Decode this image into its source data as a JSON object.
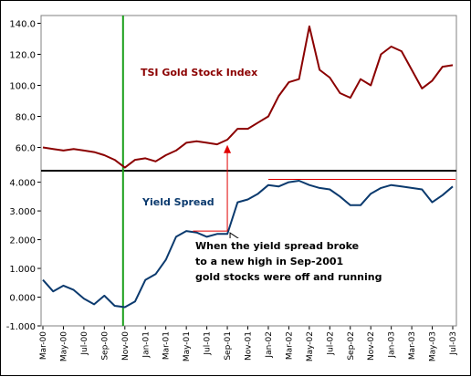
{
  "chart_data": {
    "type": "line",
    "x_tick_labels": [
      "Mar-00",
      "May-00",
      "Jul-00",
      "Sep-00",
      "Nov-00",
      "Jan-01",
      "Mar-01",
      "May-01",
      "Jul-01",
      "Sep-01",
      "Nov-01",
      "Jan-02",
      "Mar-02",
      "May-02",
      "Jul-02",
      "Sep-02",
      "Nov-02",
      "Jan-03",
      "Mar-03",
      "May-03",
      "Jul-03"
    ],
    "x_range": [
      "Mar-00",
      "Jul-03"
    ],
    "upper_panel": {
      "ylim": [
        45,
        145
      ],
      "y_ticks": [
        60,
        80,
        100,
        120,
        140
      ],
      "y_tick_labels": [
        "60.0",
        "80.0",
        "100.0",
        "120.0",
        "140.0"
      ],
      "series": [
        {
          "name": "TSI Gold Stock Index",
          "color": "#8b0000",
          "x": [
            "Mar-00",
            "Apr-00",
            "May-00",
            "Jun-00",
            "Jul-00",
            "Aug-00",
            "Sep-00",
            "Oct-00",
            "Nov-00",
            "Dec-00",
            "Jan-01",
            "Feb-01",
            "Mar-01",
            "Apr-01",
            "May-01",
            "Jun-01",
            "Jul-01",
            "Aug-01",
            "Sep-01",
            "Oct-01",
            "Nov-01",
            "Dec-01",
            "Jan-02",
            "Feb-02",
            "Mar-02",
            "Apr-02",
            "May-02",
            "Jun-02",
            "Jul-02",
            "Aug-02",
            "Sep-02",
            "Oct-02",
            "Nov-02",
            "Dec-02",
            "Jan-03",
            "Feb-03",
            "Mar-03",
            "Apr-03",
            "May-03",
            "Jun-03",
            "Jul-03"
          ],
          "y": [
            60,
            59,
            58,
            59,
            58,
            57,
            55,
            52,
            47,
            52,
            53,
            51,
            55,
            58,
            63,
            64,
            63,
            62,
            65,
            72,
            72,
            76,
            80,
            93,
            102,
            104,
            138,
            110,
            105,
            95,
            92,
            104,
            100,
            120,
            125,
            122,
            110,
            98,
            103,
            112,
            113
          ]
        }
      ]
    },
    "lower_panel": {
      "ylim": [
        -1,
        4.4
      ],
      "y_ticks": [
        -1,
        0,
        1,
        2,
        3,
        4
      ],
      "y_tick_labels": [
        "-1.000",
        "0.000",
        "1.000",
        "2.000",
        "3.000",
        "4.000"
      ],
      "series": [
        {
          "name": "Yield Spread",
          "color": "#0b3a6e",
          "x": [
            "Mar-00",
            "Apr-00",
            "May-00",
            "Jun-00",
            "Jul-00",
            "Aug-00",
            "Sep-00",
            "Oct-00",
            "Nov-00",
            "Dec-00",
            "Jan-01",
            "Feb-01",
            "Mar-01",
            "Apr-01",
            "May-01",
            "Jun-01",
            "Jul-01",
            "Aug-01",
            "Sep-01",
            "Oct-01",
            "Nov-01",
            "Dec-01",
            "Jan-02",
            "Feb-02",
            "Mar-02",
            "Apr-02",
            "May-02",
            "Jun-02",
            "Jul-02",
            "Aug-02",
            "Sep-02",
            "Oct-02",
            "Nov-02",
            "Dec-02",
            "Jan-03",
            "Feb-03",
            "Mar-03",
            "Apr-03",
            "May-03",
            "Jun-03",
            "Jul-03"
          ],
          "y": [
            0.6,
            0.2,
            0.4,
            0.25,
            -0.05,
            -0.25,
            0.05,
            -0.3,
            -0.35,
            -0.15,
            0.6,
            0.8,
            1.3,
            2.1,
            2.3,
            2.25,
            2.1,
            2.2,
            2.2,
            3.3,
            3.4,
            3.6,
            3.9,
            3.85,
            4.0,
            4.05,
            3.9,
            3.8,
            3.75,
            3.5,
            3.2,
            3.2,
            3.6,
            3.8,
            3.9,
            3.85,
            3.8,
            3.75,
            3.3,
            3.55,
            3.85
          ]
        }
      ]
    },
    "annotations": {
      "upper_label": "TSI Gold Stock Index",
      "lower_label": "Yield Spread",
      "note_lines": [
        "When the yield spread broke",
        "to a new high in Sep-2001",
        "gold stocks were off and running"
      ],
      "event_marker_date": "Nov-00",
      "breakout_date": "Sep-01",
      "breakout_level": 2.3,
      "new_high_level": 4.1
    },
    "grid": false,
    "legend": "none"
  }
}
